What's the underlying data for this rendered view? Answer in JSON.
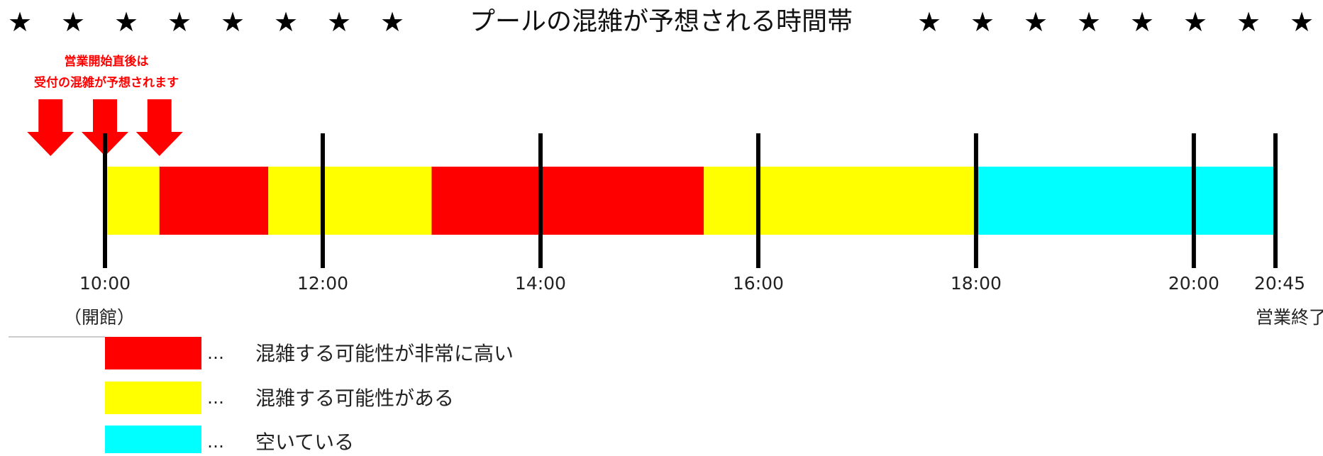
{
  "title": "プールの混雑が予想される時間帯",
  "star_glyph": "★",
  "stars_left_count": 8,
  "stars_right_count": 8,
  "note": {
    "line1": "営業開始直後は",
    "line2": "受付の混雑が予想されます",
    "color": "#ff0000"
  },
  "timeline": {
    "start_min": 600,
    "end_min": 1245,
    "ticks": [
      {
        "time_min": 600,
        "label": "10:00",
        "sub": "（開館）"
      },
      {
        "time_min": 720,
        "label": "12:00",
        "sub": ""
      },
      {
        "time_min": 840,
        "label": "14:00",
        "sub": ""
      },
      {
        "time_min": 960,
        "label": "16:00",
        "sub": ""
      },
      {
        "time_min": 1080,
        "label": "18:00",
        "sub": ""
      },
      {
        "time_min": 1200,
        "label": "20:00",
        "sub": ""
      },
      {
        "time_min": 1245,
        "label": "20:45",
        "sub": "営業終了"
      }
    ],
    "segments": [
      {
        "from": 600,
        "to": 630,
        "level": "possible"
      },
      {
        "from": 630,
        "to": 690,
        "level": "high"
      },
      {
        "from": 690,
        "to": 780,
        "level": "possible"
      },
      {
        "from": 780,
        "to": 930,
        "level": "high"
      },
      {
        "from": 930,
        "to": 1080,
        "level": "possible"
      },
      {
        "from": 1080,
        "to": 1245,
        "level": "empty"
      }
    ],
    "arrows_min": [
      570,
      600,
      630
    ]
  },
  "legend": [
    {
      "level": "high",
      "marker": "…",
      "text": "混雑する可能性が非常に高い"
    },
    {
      "level": "possible",
      "marker": "…",
      "text": "混雑する可能性がある"
    },
    {
      "level": "empty",
      "marker": "…",
      "text": "空いている"
    }
  ],
  "colors": {
    "high": "#ff0000",
    "possible": "#ffff00",
    "empty": "#00ffff",
    "tick": "#000000",
    "arrow": "#ff0000"
  }
}
